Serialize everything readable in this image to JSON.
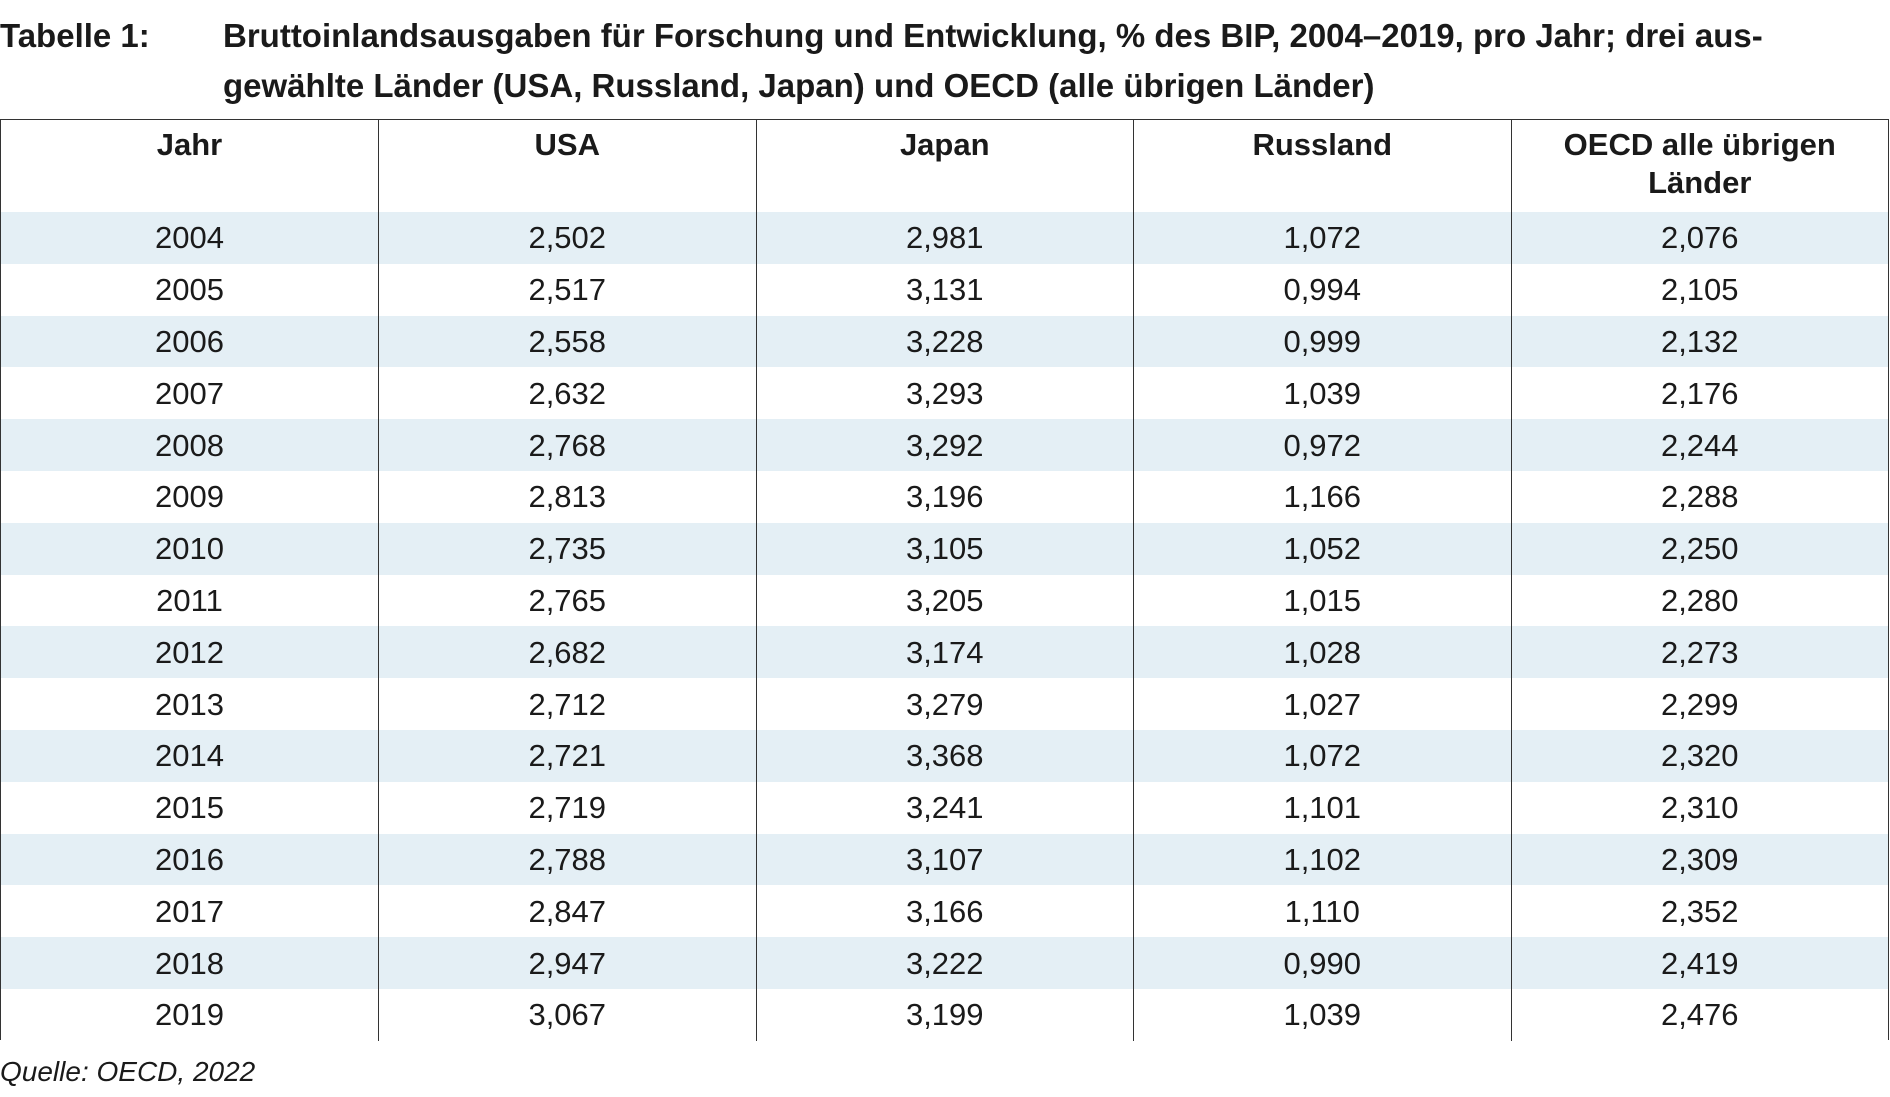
{
  "caption": {
    "label": "Tabelle 1:",
    "line1": "Bruttoinlandsausgaben für Forschung und Entwicklung, % des BIP, 2004–2019, pro Jahr; drei aus-",
    "line2": "gewählte Länder (USA, Russland, Japan) und OECD (alle übrigen Länder)"
  },
  "table": {
    "headers": [
      "Jahr",
      "USA",
      "Japan",
      "Russland",
      "OECD alle übrigen Länder"
    ],
    "rows": [
      [
        "2004",
        "2,502",
        "2,981",
        "1,072",
        "2,076"
      ],
      [
        "2005",
        "2,517",
        "3,131",
        "0,994",
        "2,105"
      ],
      [
        "2006",
        "2,558",
        "3,228",
        "0,999",
        "2,132"
      ],
      [
        "2007",
        "2,632",
        "3,293",
        "1,039",
        "2,176"
      ],
      [
        "2008",
        "2,768",
        "3,292",
        "0,972",
        "2,244"
      ],
      [
        "2009",
        "2,813",
        "3,196",
        "1,166",
        "2,288"
      ],
      [
        "2010",
        "2,735",
        "3,105",
        "1,052",
        "2,250"
      ],
      [
        "2011",
        "2,765",
        "3,205",
        "1,015",
        "2,280"
      ],
      [
        "2012",
        "2,682",
        "3,174",
        "1,028",
        "2,273"
      ],
      [
        "2013",
        "2,712",
        "3,279",
        "1,027",
        "2,299"
      ],
      [
        "2014",
        "2,721",
        "3,368",
        "1,072",
        "2,320"
      ],
      [
        "2015",
        "2,719",
        "3,241",
        "1,101",
        "2,310"
      ],
      [
        "2016",
        "2,788",
        "3,107",
        "1,102",
        "2,309"
      ],
      [
        "2017",
        "2,847",
        "3,166",
        "1,110",
        "2,352"
      ],
      [
        "2018",
        "2,947",
        "3,222",
        "0,990",
        "2,419"
      ],
      [
        "2019",
        "3,067",
        "3,199",
        "1,039",
        "2,476"
      ]
    ]
  },
  "source": "Quelle: OECD, 2022",
  "colors": {
    "stripe": "#e4eff5",
    "border": "#333333",
    "text": "#1a1a1a"
  }
}
